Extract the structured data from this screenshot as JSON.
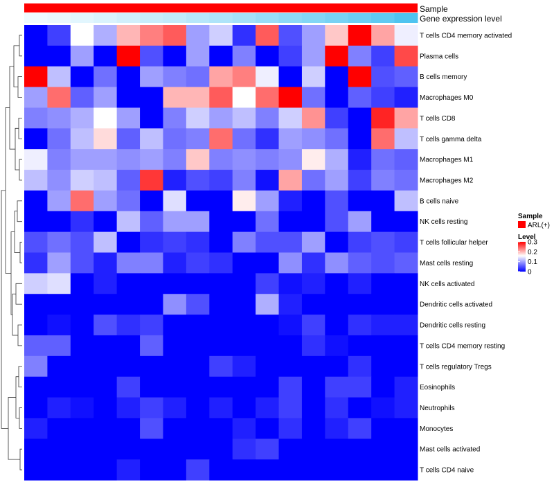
{
  "chart_data": {
    "type": "heatmap",
    "title": "",
    "annotations": {
      "sample_label": "Sample",
      "gene_expression_label": "Gene expression level",
      "sample_color": "#ff0000",
      "gene_expression_low_color": "#f2fbff",
      "gene_expression_high_color": "#4fc4f0"
    },
    "rows": [
      "T cells CD4 memory activated",
      "Plasma cells",
      "B cells memory",
      "Macrophages M0",
      "T cells CD8",
      "T cells gamma delta",
      "Macrophages M1",
      "Macrophages M2",
      "B cells naive",
      "NK cells resting",
      "T cells follicular helper",
      "Mast cells resting",
      "NK cells activated",
      "Dendritic cells activated",
      "Dendritic cells resting",
      "T cells CD4 memory resting",
      "T cells regulatory  Tregs",
      "Eosinophils",
      "Neutrophils",
      "Monocytes",
      "Mast cells activated",
      "T cells CD4 naive"
    ],
    "n_columns": 17,
    "values": [
      [
        0.0,
        0.04,
        0.16,
        0.11,
        0.2,
        0.23,
        0.25,
        0.1,
        0.13,
        0.03,
        0.25,
        0.05,
        0.1,
        0.19,
        0.3,
        0.21,
        0.15
      ],
      [
        0.0,
        0.0,
        0.1,
        0.0,
        0.3,
        0.05,
        0.0,
        0.1,
        0.0,
        0.08,
        0.0,
        0.04,
        0.1,
        0.3,
        0.08,
        0.04,
        0.26
      ],
      [
        0.3,
        0.12,
        0.0,
        0.07,
        0.0,
        0.1,
        0.08,
        0.07,
        0.21,
        0.23,
        0.15,
        0.0,
        0.13,
        0.0,
        0.3,
        0.05,
        0.06
      ],
      [
        0.1,
        0.24,
        0.06,
        0.1,
        0.0,
        0.0,
        0.2,
        0.2,
        0.25,
        0.16,
        0.24,
        0.3,
        0.07,
        0.0,
        0.06,
        0.04,
        0.02
      ],
      [
        0.08,
        0.09,
        0.11,
        0.16,
        0.1,
        0.0,
        0.08,
        0.13,
        0.1,
        0.12,
        0.08,
        0.13,
        0.22,
        0.04,
        0.0,
        0.28,
        0.21
      ],
      [
        0.0,
        0.07,
        0.12,
        0.18,
        0.06,
        0.12,
        0.07,
        0.08,
        0.24,
        0.07,
        0.03,
        0.1,
        0.09,
        0.07,
        0.0,
        0.24,
        0.12
      ],
      [
        0.15,
        0.08,
        0.1,
        0.1,
        0.09,
        0.1,
        0.08,
        0.19,
        0.08,
        0.09,
        0.08,
        0.09,
        0.17,
        0.11,
        0.02,
        0.07,
        0.06
      ],
      [
        0.12,
        0.09,
        0.13,
        0.12,
        0.06,
        0.27,
        0.02,
        0.05,
        0.04,
        0.08,
        0.01,
        0.21,
        0.07,
        0.1,
        0.04,
        0.08,
        0.07
      ],
      [
        0.0,
        0.1,
        0.24,
        0.1,
        0.07,
        0.0,
        0.14,
        0.0,
        0.0,
        0.17,
        0.1,
        0.02,
        0.0,
        0.05,
        0.0,
        0.0,
        0.12
      ],
      [
        0.0,
        0.0,
        0.03,
        0.0,
        0.12,
        0.06,
        0.1,
        0.1,
        0.0,
        0.0,
        0.07,
        0.0,
        0.0,
        0.05,
        0.1,
        0.0,
        0.0
      ],
      [
        0.05,
        0.07,
        0.05,
        0.12,
        0.0,
        0.03,
        0.04,
        0.03,
        0.0,
        0.08,
        0.05,
        0.05,
        0.1,
        0.0,
        0.04,
        0.05,
        0.04
      ],
      [
        0.03,
        0.1,
        0.05,
        0.02,
        0.08,
        0.08,
        0.02,
        0.04,
        0.03,
        0.0,
        0.0,
        0.09,
        0.03,
        0.09,
        0.06,
        0.05,
        0.06
      ],
      [
        0.13,
        0.14,
        0.0,
        0.02,
        0.0,
        0.0,
        0.0,
        0.0,
        0.0,
        0.0,
        0.04,
        0.01,
        0.02,
        0.0,
        0.02,
        0.0,
        0.0
      ],
      [
        0.0,
        0.0,
        0.0,
        0.0,
        0.0,
        0.0,
        0.09,
        0.05,
        0.0,
        0.0,
        0.11,
        0.02,
        0.0,
        0.0,
        0.0,
        0.0,
        0.0
      ],
      [
        0.0,
        0.01,
        0.0,
        0.05,
        0.03,
        0.04,
        0.0,
        0.0,
        0.0,
        0.0,
        0.0,
        0.01,
        0.04,
        0.0,
        0.03,
        0.02,
        0.02
      ],
      [
        0.06,
        0.06,
        0.0,
        0.0,
        0.0,
        0.06,
        0.0,
        0.0,
        0.0,
        0.0,
        0.0,
        0.0,
        0.03,
        0.01,
        0.0,
        0.0,
        0.0
      ],
      [
        0.08,
        0.0,
        0.0,
        0.0,
        0.0,
        0.0,
        0.0,
        0.0,
        0.04,
        0.02,
        0.0,
        0.0,
        0.0,
        0.0,
        0.03,
        0.0,
        0.0
      ],
      [
        0.0,
        0.0,
        0.0,
        0.0,
        0.04,
        0.0,
        0.0,
        0.0,
        0.0,
        0.0,
        0.0,
        0.04,
        0.0,
        0.04,
        0.04,
        0.0,
        0.02
      ],
      [
        0.0,
        0.02,
        0.01,
        0.0,
        0.02,
        0.04,
        0.02,
        0.0,
        0.02,
        0.0,
        0.02,
        0.04,
        0.0,
        0.03,
        0.0,
        0.01,
        0.02
      ],
      [
        0.02,
        0.0,
        0.0,
        0.0,
        0.0,
        0.05,
        0.0,
        0.0,
        0.0,
        0.02,
        0.0,
        0.03,
        0.0,
        0.02,
        0.04,
        0.0,
        0.0
      ],
      [
        0.0,
        0.0,
        0.0,
        0.0,
        0.0,
        0.0,
        0.0,
        0.0,
        0.0,
        0.03,
        0.04,
        0.0,
        0.0,
        0.0,
        0.0,
        0.0,
        0.0
      ],
      [
        0.0,
        0.0,
        0.0,
        0.0,
        0.02,
        0.0,
        0.0,
        0.04,
        0.0,
        0.0,
        0.0,
        0.0,
        0.0,
        0.0,
        0.0,
        0.0,
        0.0
      ]
    ],
    "gene_expression_levels": [
      0.02,
      0.05,
      0.1,
      0.15,
      0.2,
      0.26,
      0.3,
      0.36,
      0.42,
      0.48,
      0.55,
      0.62,
      0.68,
      0.75,
      0.82,
      0.9,
      1.0
    ],
    "color_scale": {
      "min": 0,
      "max": 0.3,
      "low_color": "#0000ff",
      "mid_color": "#ffffff",
      "high_color": "#ff0000",
      "midpoint": 0.16
    },
    "legend": {
      "sample_title": "Sample",
      "sample_item": "ARL(+)",
      "level_title": "Level",
      "ticks": [
        "0.3",
        "0.2",
        "0.1",
        "0"
      ],
      "tick_values": [
        0.3,
        0.2,
        0.1,
        0
      ],
      "placement": "right"
    },
    "dendrogram": "rows"
  }
}
